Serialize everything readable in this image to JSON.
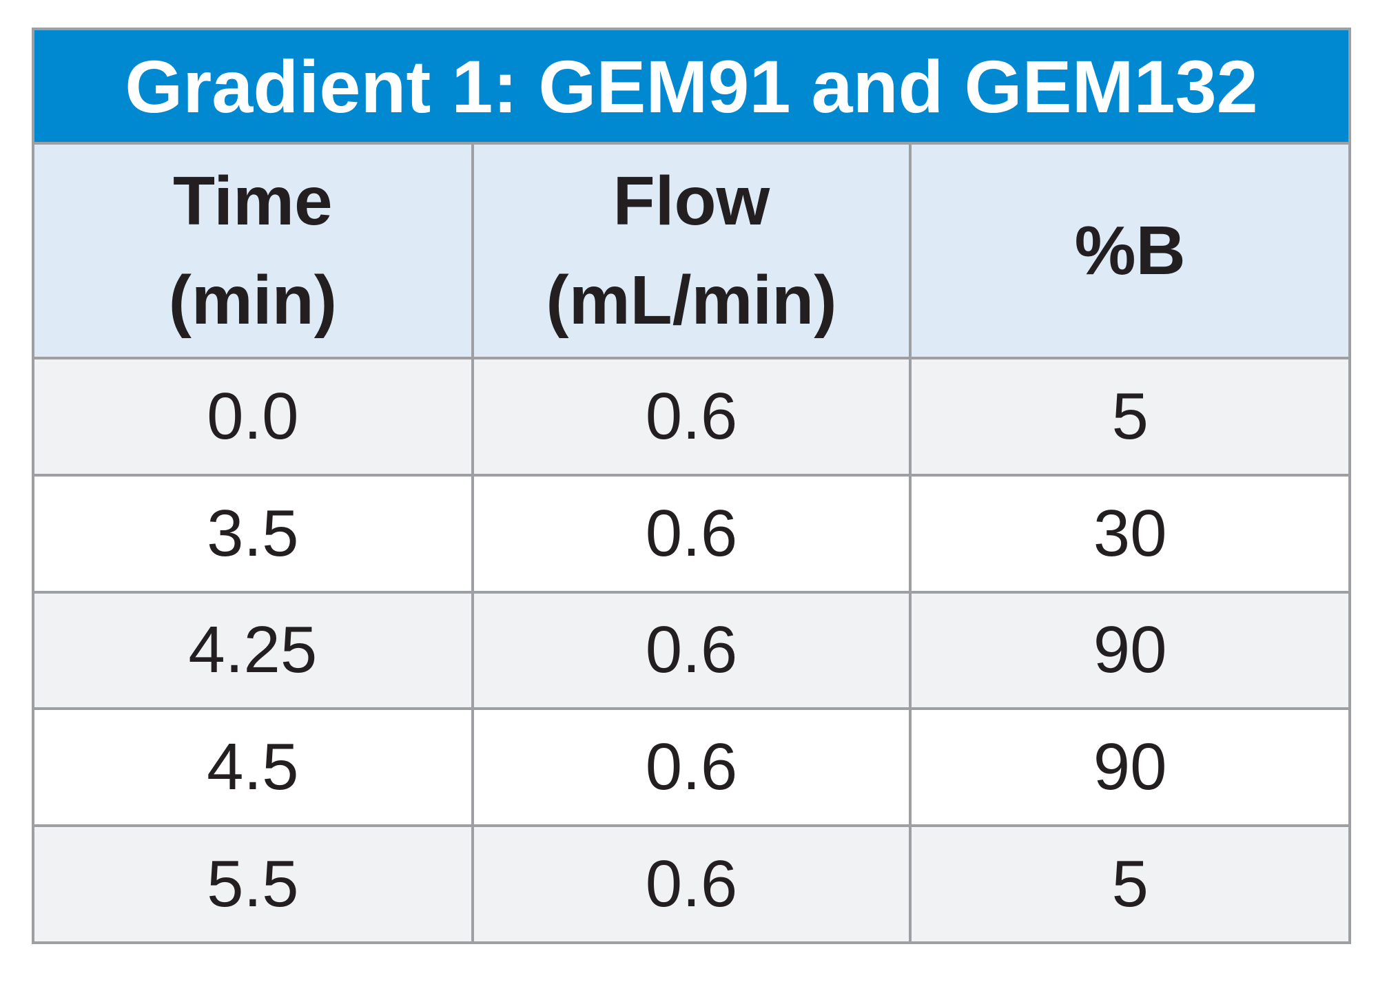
{
  "chart_data": {
    "type": "table",
    "title": "Gradient 1: GEM91 and GEM132",
    "columns": [
      {
        "line1": "Time",
        "line2": "(min)"
      },
      {
        "line1": "Flow",
        "line2": "(mL/min)"
      },
      {
        "line1": "%B",
        "line2": ""
      }
    ],
    "rows": [
      [
        "0.0",
        "0.6",
        "5"
      ],
      [
        "3.5",
        "0.6",
        "30"
      ],
      [
        "4.25",
        "0.6",
        "90"
      ],
      [
        "4.5",
        "0.6",
        "90"
      ],
      [
        "5.5",
        "0.6",
        "5"
      ]
    ]
  },
  "colors": {
    "title_background": "#0088d1",
    "title_text": "#ffffff",
    "header_background": "#deebf7",
    "shaded_row": "#f1f2f3",
    "border": "#9d9fa2",
    "text": "#231f20"
  }
}
